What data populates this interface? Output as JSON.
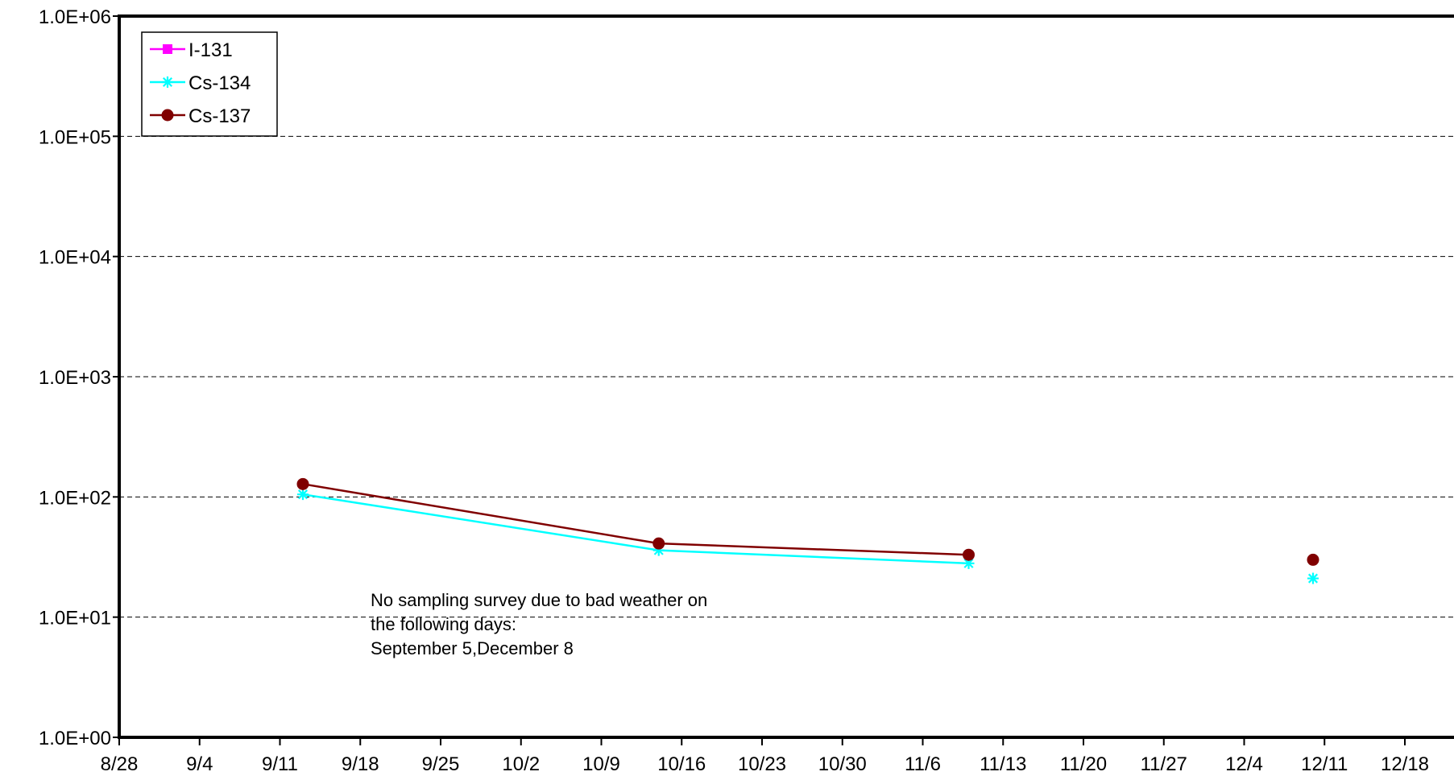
{
  "chart_data": {
    "type": "line",
    "y_scale": "log",
    "ylim": [
      1,
      1000000
    ],
    "xlim": [
      "2012-08-28",
      "2012-12-23"
    ],
    "grid": {
      "y_major": true,
      "style": "dashed"
    },
    "legend_position": "top-left",
    "y_tick_labels": [
      "1.0E+00",
      "1.0E+01",
      "1.0E+02",
      "1.0E+03",
      "1.0E+04",
      "1.0E+05",
      "1.0E+06"
    ],
    "y_tick_values": [
      1,
      10,
      100,
      1000,
      10000,
      100000,
      1000000
    ],
    "x_tick_labels": [
      "8/28",
      "9/4",
      "9/11",
      "9/18",
      "9/25",
      "10/2",
      "10/9",
      "10/16",
      "10/23",
      "10/30",
      "11/6",
      "11/13",
      "11/20",
      "11/27",
      "12/4",
      "12/11",
      "12/18"
    ],
    "x_tick_dates": [
      "2012-08-28",
      "2012-09-04",
      "2012-09-11",
      "2012-09-18",
      "2012-09-25",
      "2012-10-02",
      "2012-10-09",
      "2012-10-16",
      "2012-10-23",
      "2012-10-30",
      "2012-11-06",
      "2012-11-13",
      "2012-11-20",
      "2012-11-27",
      "2012-12-04",
      "2012-12-11",
      "2012-12-18"
    ],
    "series": [
      {
        "name": "I-131",
        "color": "#ff00ff",
        "marker": "square",
        "points": []
      },
      {
        "name": "Cs-134",
        "color": "#00ffff",
        "marker": "asterisk",
        "points": [
          {
            "x": "2012-09-13",
            "y": 105,
            "connected": true
          },
          {
            "x": "2012-10-14",
            "y": 36,
            "connected": true
          },
          {
            "x": "2012-11-10",
            "y": 28,
            "connected": true
          },
          {
            "x": "2012-12-10",
            "y": 21,
            "connected": false
          }
        ]
      },
      {
        "name": "Cs-137",
        "color": "#800000",
        "marker": "circle",
        "points": [
          {
            "x": "2012-09-13",
            "y": 128,
            "connected": true
          },
          {
            "x": "2012-10-14",
            "y": 41,
            "connected": true
          },
          {
            "x": "2012-11-10",
            "y": 33,
            "connected": true
          },
          {
            "x": "2012-12-10",
            "y": 30,
            "connected": false
          }
        ]
      }
    ],
    "annotation": {
      "lines": [
        "No sampling survey due to bad weather on",
        "the following days:",
        "September 5,December 8"
      ]
    }
  }
}
